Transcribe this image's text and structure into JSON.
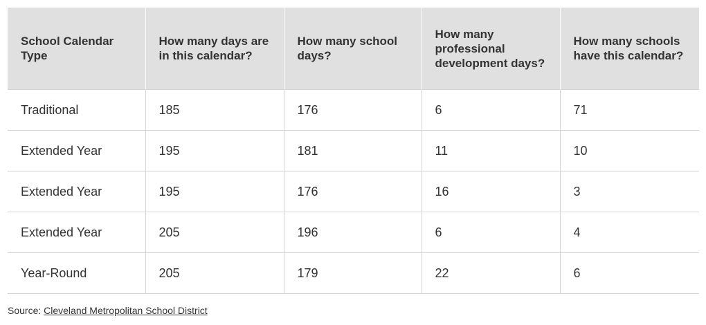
{
  "table": {
    "headers": [
      "School Calendar Type",
      "How many days are in this calendar?",
      "How many school days?",
      "How many professional development days?",
      "How many schools have this calendar?"
    ],
    "rows": [
      [
        "Traditional",
        "185",
        "176",
        "6",
        "71"
      ],
      [
        "Extended Year",
        "195",
        "181",
        "11",
        "10"
      ],
      [
        "Extended Year",
        "195",
        "176",
        "16",
        "3"
      ],
      [
        "Extended Year",
        "205",
        "196",
        "6",
        "4"
      ],
      [
        "Year-Round",
        "205",
        "179",
        "22",
        "6"
      ]
    ]
  },
  "source": {
    "prefix": "Source:",
    "link_text": "Cleveland Metropolitan School District"
  }
}
